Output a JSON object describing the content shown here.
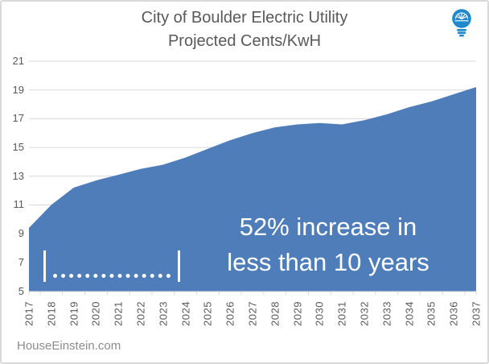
{
  "watermark": "HouseEinstein.com",
  "icons": {
    "top_right": "lightbulb-icon"
  },
  "colors": {
    "area_fill": "#4e7dba",
    "grid": "#d9d9d9",
    "axis_text": "#595959",
    "title_text": "#595959",
    "annotation_text": "#ffffff",
    "bulb_blue": "#1f89cc",
    "frame_border": "#d9d9d9",
    "watermark_text": "#8c8c8c"
  },
  "chart_data": {
    "type": "area",
    "title_line1": "City of Boulder Electric Utility",
    "title_line2": "Projected Cents/KwH",
    "x": [
      2017,
      2018,
      2019,
      2020,
      2021,
      2022,
      2023,
      2024,
      2025,
      2026,
      2027,
      2028,
      2029,
      2030,
      2031,
      2032,
      2033,
      2034,
      2035,
      2036,
      2037
    ],
    "values": [
      9.4,
      11.0,
      12.2,
      12.7,
      13.1,
      13.5,
      13.8,
      14.3,
      14.9,
      15.5,
      16.0,
      16.4,
      16.6,
      16.7,
      16.6,
      16.9,
      17.3,
      17.8,
      18.2,
      18.7,
      19.2
    ],
    "ylim": [
      5,
      21
    ],
    "yticks": [
      5,
      7,
      9,
      11,
      13,
      15,
      17,
      19,
      21
    ],
    "xlabel": "",
    "ylabel": "",
    "grid": "horizontal",
    "legend": "none",
    "annotation": {
      "line1": "52% increase in",
      "line2": "less than 10 years"
    },
    "bracket_text": "|...............|"
  }
}
